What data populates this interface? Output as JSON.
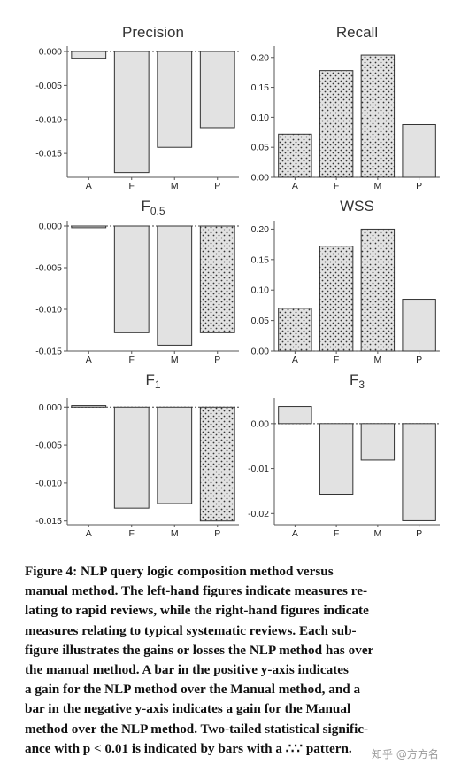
{
  "chart_data": [
    {
      "type": "bar",
      "title": "Precision",
      "categories": [
        "A",
        "F",
        "M",
        "P"
      ],
      "values": [
        -0.001,
        -0.0178,
        -0.0141,
        -0.0112
      ],
      "significant": [
        false,
        false,
        false,
        false
      ],
      "ylim": [
        -0.0185,
        0.0
      ],
      "yticks": [
        "0.000",
        "-0.005",
        "-0.010",
        "-0.015"
      ],
      "ytick_values": [
        0.0,
        -0.005,
        -0.01,
        -0.015
      ]
    },
    {
      "type": "bar",
      "title": "Recall",
      "categories": [
        "A",
        "F",
        "M",
        "P"
      ],
      "values": [
        0.072,
        0.178,
        0.204,
        0.088
      ],
      "significant": [
        true,
        true,
        true,
        false
      ],
      "ylim": [
        0.0,
        0.21
      ],
      "yticks": [
        "0.20",
        "0.15",
        "0.10",
        "0.05",
        "0.00"
      ],
      "ytick_values": [
        0.2,
        0.15,
        0.1,
        0.05,
        0.0
      ]
    },
    {
      "type": "bar",
      "title": "F",
      "title_sub": "0.5",
      "categories": [
        "A",
        "F",
        "M",
        "P"
      ],
      "values": [
        -0.0002,
        -0.0128,
        -0.0143,
        -0.0128
      ],
      "significant": [
        false,
        false,
        false,
        true
      ],
      "ylim": [
        -0.015,
        0.0
      ],
      "yticks": [
        "0.000",
        "-0.005",
        "-0.010",
        "-0.015"
      ],
      "ytick_values": [
        0.0,
        -0.005,
        -0.01,
        -0.015
      ]
    },
    {
      "type": "bar",
      "title": "WSS",
      "categories": [
        "A",
        "F",
        "M",
        "P"
      ],
      "values": [
        0.07,
        0.172,
        0.2,
        0.085
      ],
      "significant": [
        true,
        true,
        true,
        false
      ],
      "ylim": [
        0.0,
        0.205
      ],
      "yticks": [
        "0.20",
        "0.15",
        "0.10",
        "0.05",
        "0.00"
      ],
      "ytick_values": [
        0.2,
        0.15,
        0.1,
        0.05,
        0.0
      ]
    },
    {
      "type": "bar",
      "title": "F",
      "title_sub": "1",
      "categories": [
        "A",
        "F",
        "M",
        "P"
      ],
      "values": [
        0.0002,
        -0.0133,
        -0.0127,
        -0.015
      ],
      "significant": [
        false,
        false,
        false,
        true
      ],
      "ylim": [
        -0.0155,
        0.0005
      ],
      "yticks": [
        "0.000",
        "-0.005",
        "-0.010",
        "-0.015"
      ],
      "ytick_values": [
        0.0,
        -0.005,
        -0.01,
        -0.015
      ]
    },
    {
      "type": "bar",
      "title": "F",
      "title_sub": "3",
      "categories": [
        "A",
        "F",
        "M",
        "P"
      ],
      "values": [
        0.0038,
        -0.0157,
        -0.0081,
        -0.0216
      ],
      "significant": [
        false,
        false,
        false,
        false
      ],
      "ylim": [
        -0.0225,
        0.0045
      ],
      "yticks": [
        "0.00",
        "-0.01",
        "-0.02"
      ],
      "ytick_values": [
        0.0,
        -0.01,
        -0.02
      ]
    }
  ],
  "caption": {
    "lines": [
      "Figure 4: NLP query logic composition method versus",
      "manual method. The left-hand figures indicate measures re-",
      "lating to rapid reviews, while the right-hand figures indicate",
      "measures relating to typical systematic reviews. Each sub-",
      "figure illustrates the gains or losses the NLP method has over",
      "the manual method. A bar in the positive y-axis indicates",
      "a gain for the NLP method over the Manual method, and a",
      "bar in the negative y-axis indicates a gain for the Manual",
      "method over the NLP method. Two-tailed statistical signific-",
      "ance with p < 0.01 is indicated by bars with a ∴∵ pattern."
    ]
  },
  "watermark": "知乎 @方方名",
  "colors": {
    "bar_fill": "#e2e2e2",
    "bar_stroke": "#333333",
    "dot": "#333333",
    "axis": "#555555",
    "text": "#222222",
    "title": "#333333"
  }
}
